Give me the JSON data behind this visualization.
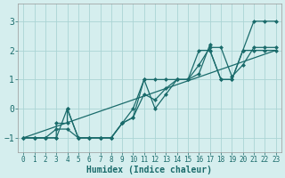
{
  "xlabel": "Humidex (Indice chaleur)",
  "xlim": [
    -0.5,
    23.5
  ],
  "ylim": [
    -1.5,
    3.6
  ],
  "xticks": [
    0,
    1,
    2,
    3,
    4,
    5,
    6,
    7,
    8,
    9,
    10,
    11,
    12,
    13,
    14,
    15,
    16,
    17,
    18,
    19,
    20,
    21,
    22,
    23
  ],
  "yticks": [
    -1,
    0,
    1,
    2,
    3
  ],
  "bg_color": "#d5eeee",
  "grid_color": "#aad4d4",
  "line_color": "#1a6b6b",
  "s1x": [
    0,
    1,
    2,
    3,
    4,
    5,
    6,
    7,
    8,
    9,
    10,
    11,
    12,
    13,
    14,
    15,
    16,
    17,
    18,
    19,
    20,
    21,
    22,
    23
  ],
  "s1y": [
    -1,
    -1,
    -1,
    -1,
    0,
    -1,
    -1,
    -1,
    -1,
    -0.5,
    0,
    1,
    1,
    1,
    1,
    1,
    2,
    2,
    1,
    1,
    2,
    3,
    3,
    3
  ],
  "s2x": [
    0,
    1,
    2,
    3,
    3,
    4,
    4,
    5,
    6,
    7,
    8,
    9,
    10,
    11,
    12,
    13,
    14,
    15,
    16,
    17,
    17,
    18,
    19,
    20,
    21,
    22,
    23
  ],
  "s2y": [
    -1,
    -1,
    -1,
    -1,
    -0.5,
    -0.5,
    0,
    -1,
    -1,
    -1,
    -1,
    -0.5,
    -0.3,
    1,
    0,
    0.5,
    1,
    1,
    1.2,
    2.2,
    2,
    1.0,
    1,
    2,
    2,
    2,
    2
  ],
  "s3x": [
    0,
    1,
    2,
    3,
    4,
    5,
    6,
    7,
    8,
    9,
    10,
    11,
    12,
    13,
    14,
    15,
    16,
    17,
    18,
    19,
    20,
    21,
    22,
    23
  ],
  "s3y": [
    -1,
    -1,
    -1,
    -0.7,
    -0.7,
    -1,
    -1,
    -1,
    -1,
    -0.5,
    -0.3,
    0.5,
    0.3,
    0.7,
    1,
    1,
    1.5,
    2.1,
    2.1,
    1.1,
    1.5,
    2.1,
    2.1,
    2.1
  ],
  "s4x": [
    0,
    23
  ],
  "s4y": [
    -1,
    2
  ]
}
